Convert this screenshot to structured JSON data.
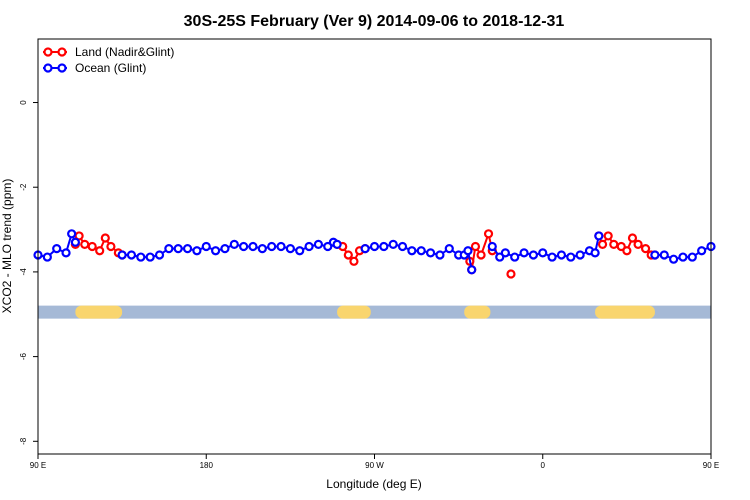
{
  "chart_data": {
    "type": "line",
    "title": "30S-25S February (Ver 9)   2014-09-06 to 2018-12-31",
    "xlabel": "Longitude (deg E)",
    "ylabel": "XCO2 - MLO trend (ppm)",
    "xlim": [
      90,
      450
    ],
    "ylim": [
      -8.3,
      1.5
    ],
    "x_ticks": [
      {
        "value": 90,
        "label": "90 E"
      },
      {
        "value": 180,
        "label": "180"
      },
      {
        "value": 270,
        "label": "90 W"
      },
      {
        "value": 360,
        "label": "0"
      },
      {
        "value": 450,
        "label": "90 E"
      },
      {
        "value": 540,
        "label": "180"
      }
    ],
    "y_ticks": [
      {
        "value": 0,
        "label": "0"
      },
      {
        "value": -2,
        "label": "-2"
      },
      {
        "value": -4,
        "label": "-4"
      },
      {
        "value": -6,
        "label": "-6"
      },
      {
        "value": -8,
        "label": "-8"
      }
    ],
    "legend": {
      "position": "top-left",
      "entries": [
        "Land (Nadir&Glint)",
        "Ocean (Glint)"
      ]
    },
    "land_band": {
      "y": -4.95,
      "ocean_color": "#a5b9d6",
      "land_color": "#f9d56e",
      "land_ranges": [
        [
          110,
          135
        ],
        [
          250,
          268
        ],
        [
          318,
          332
        ],
        [
          388,
          420
        ]
      ]
    },
    "series": [
      {
        "name": "Land (Nadir&Glint)",
        "color": "#ff0000",
        "segments": [
          [
            [
              110,
              -3.35
            ],
            [
              112,
              -3.15
            ],
            [
              115,
              -3.35
            ],
            [
              119,
              -3.4
            ],
            [
              123,
              -3.5
            ],
            [
              126,
              -3.2
            ],
            [
              129,
              -3.4
            ],
            [
              133,
              -3.55
            ],
            [
              135,
              -3.6
            ]
          ],
          [
            [
              250,
              -3.35
            ],
            [
              253,
              -3.4
            ],
            [
              256,
              -3.6
            ],
            [
              259,
              -3.75
            ],
            [
              262,
              -3.5
            ],
            [
              265,
              -3.45
            ]
          ],
          [
            [
              321,
              -3.75
            ],
            [
              322,
              -3.95
            ],
            [
              324,
              -3.4
            ],
            [
              327,
              -3.6
            ],
            [
              331,
              -3.1
            ],
            [
              333,
              -3.5
            ]
          ],
          [
            [
              343,
              -4.05
            ]
          ],
          [
            [
              390,
              -3.15
            ],
            [
              392,
              -3.35
            ],
            [
              395,
              -3.15
            ],
            [
              398,
              -3.35
            ],
            [
              402,
              -3.4
            ],
            [
              405,
              -3.5
            ],
            [
              408,
              -3.2
            ],
            [
              411,
              -3.35
            ],
            [
              415,
              -3.45
            ],
            [
              418,
              -3.6
            ],
            [
              420,
              -3.6
            ]
          ]
        ]
      },
      {
        "name": "Ocean (Glint)",
        "color": "#0000ff",
        "segments": [
          [
            [
              90,
              -3.6
            ],
            [
              95,
              -3.65
            ],
            [
              100,
              -3.45
            ],
            [
              105,
              -3.55
            ],
            [
              108,
              -3.1
            ],
            [
              110,
              -3.3
            ]
          ],
          [
            [
              135,
              -3.6
            ],
            [
              140,
              -3.6
            ],
            [
              145,
              -3.65
            ],
            [
              150,
              -3.65
            ],
            [
              155,
              -3.6
            ],
            [
              160,
              -3.45
            ],
            [
              165,
              -3.45
            ],
            [
              170,
              -3.45
            ],
            [
              175,
              -3.5
            ],
            [
              180,
              -3.4
            ],
            [
              185,
              -3.5
            ],
            [
              190,
              -3.45
            ],
            [
              195,
              -3.35
            ],
            [
              200,
              -3.4
            ],
            [
              205,
              -3.4
            ],
            [
              210,
              -3.45
            ],
            [
              215,
              -3.4
            ],
            [
              220,
              -3.4
            ],
            [
              225,
              -3.45
            ],
            [
              230,
              -3.5
            ],
            [
              235,
              -3.4
            ],
            [
              240,
              -3.35
            ],
            [
              245,
              -3.4
            ],
            [
              248,
              -3.3
            ],
            [
              250,
              -3.35
            ]
          ],
          [
            [
              265,
              -3.45
            ],
            [
              270,
              -3.4
            ],
            [
              275,
              -3.4
            ],
            [
              280,
              -3.35
            ],
            [
              285,
              -3.4
            ],
            [
              290,
              -3.5
            ],
            [
              295,
              -3.5
            ],
            [
              300,
              -3.55
            ],
            [
              305,
              -3.6
            ],
            [
              310,
              -3.45
            ],
            [
              315,
              -3.6
            ],
            [
              318,
              -3.6
            ],
            [
              320,
              -3.5
            ],
            [
              322,
              -3.95
            ]
          ],
          [
            [
              333,
              -3.4
            ],
            [
              337,
              -3.65
            ],
            [
              340,
              -3.55
            ],
            [
              345,
              -3.65
            ],
            [
              350,
              -3.55
            ],
            [
              355,
              -3.6
            ],
            [
              360,
              -3.55
            ],
            [
              365,
              -3.65
            ],
            [
              370,
              -3.6
            ],
            [
              375,
              -3.65
            ],
            [
              380,
              -3.6
            ],
            [
              385,
              -3.5
            ],
            [
              388,
              -3.55
            ],
            [
              390,
              -3.15
            ]
          ],
          [
            [
              420,
              -3.6
            ],
            [
              425,
              -3.6
            ],
            [
              430,
              -3.7
            ],
            [
              435,
              -3.65
            ],
            [
              440,
              -3.65
            ],
            [
              445,
              -3.5
            ],
            [
              450,
              -3.4
            ]
          ]
        ]
      }
    ]
  }
}
